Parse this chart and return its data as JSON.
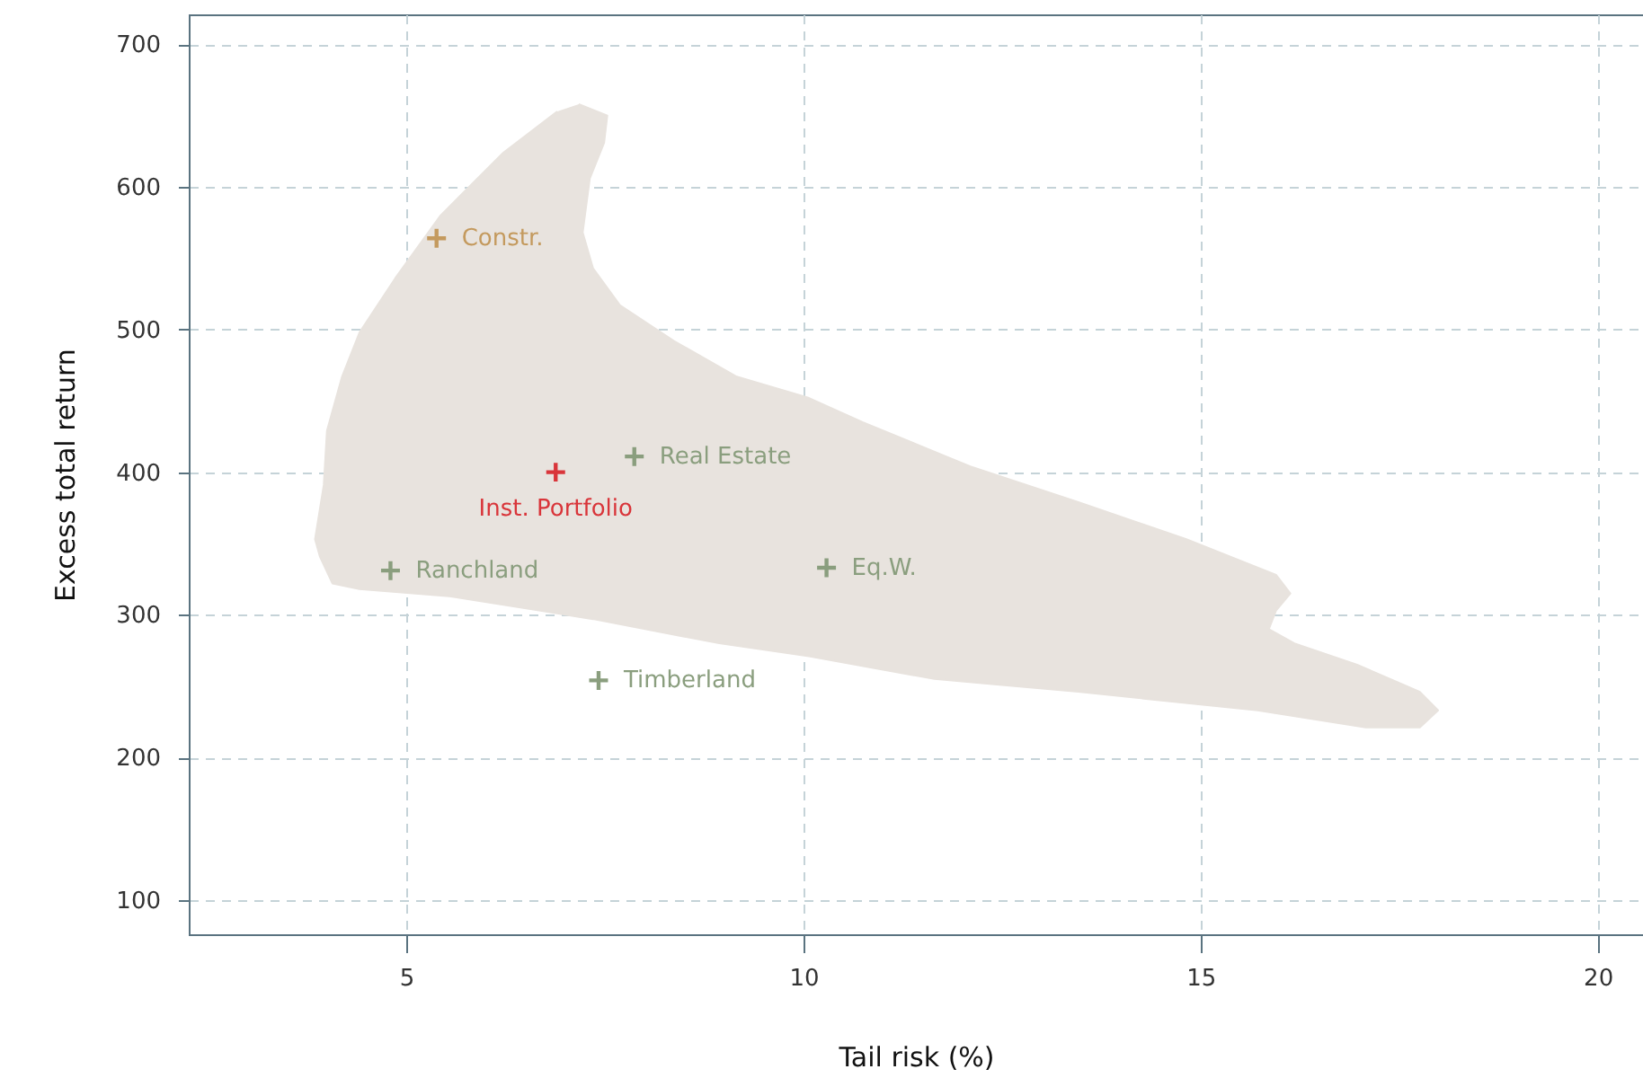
{
  "chart_data": {
    "type": "scatter",
    "xlabel": "Tail risk (%)",
    "ylabel": "Excess total return",
    "xlim": [
      2.26,
      20.57
    ],
    "ylim": [
      76,
      721
    ],
    "xticks": [
      5,
      10,
      15,
      20
    ],
    "yticks": [
      100,
      200,
      300,
      400,
      500,
      600,
      700
    ],
    "grid": true,
    "marker": "cross",
    "series": [
      {
        "type": "area",
        "marker": "none",
        "color": "#e8e3de",
        "x": [
          7.17,
          7.53,
          7.49,
          7.31,
          7.22,
          7.35,
          7.69,
          8.37,
          9.16,
          10.07,
          10.75,
          12.1,
          13.46,
          14.82,
          15.95,
          16.13,
          15.95,
          15.86,
          16.18,
          16.97,
          17.76,
          17.99,
          17.76,
          17.08,
          15.72,
          13.46,
          11.65,
          10.07,
          8.94,
          7.35,
          6.67,
          5.54,
          4.41,
          4.07,
          3.91,
          3.85,
          3.96,
          4.0,
          4.19,
          4.41,
          4.86,
          5.43,
          6.22,
          6.9
        ],
        "values": [
          658,
          650,
          631,
          606,
          568,
          543,
          517,
          492,
          467,
          452,
          435,
          404,
          379,
          353,
          328,
          315,
          303,
          290,
          280,
          265,
          246,
          233,
          221,
          221,
          233,
          246,
          255,
          271,
          280,
          297,
          303,
          313,
          318,
          322,
          341,
          353,
          391,
          429,
          467,
          498,
          536,
          580,
          624,
          653
        ]
      },
      {
        "name": "Constr.",
        "color": "#c49a5e",
        "x": [
          5.38
        ],
        "values": [
          564
        ]
      },
      {
        "name": "Inst. Portfolio",
        "color": "#d9353a",
        "x": [
          6.88
        ],
        "values": [
          400
        ]
      },
      {
        "name": "Real Estate",
        "color": "#8a9e7e",
        "x": [
          7.87
        ],
        "values": [
          411
        ]
      },
      {
        "name": "Ranchland",
        "color": "#8a9e7e",
        "x": [
          4.8
        ],
        "values": [
          331
        ]
      },
      {
        "name": "Eq.W.",
        "color": "#8a9e7e",
        "x": [
          10.29
        ],
        "values": [
          333
        ]
      },
      {
        "name": "Timberland",
        "color": "#8a9e7e",
        "x": [
          7.42
        ],
        "values": [
          254
        ]
      }
    ]
  }
}
